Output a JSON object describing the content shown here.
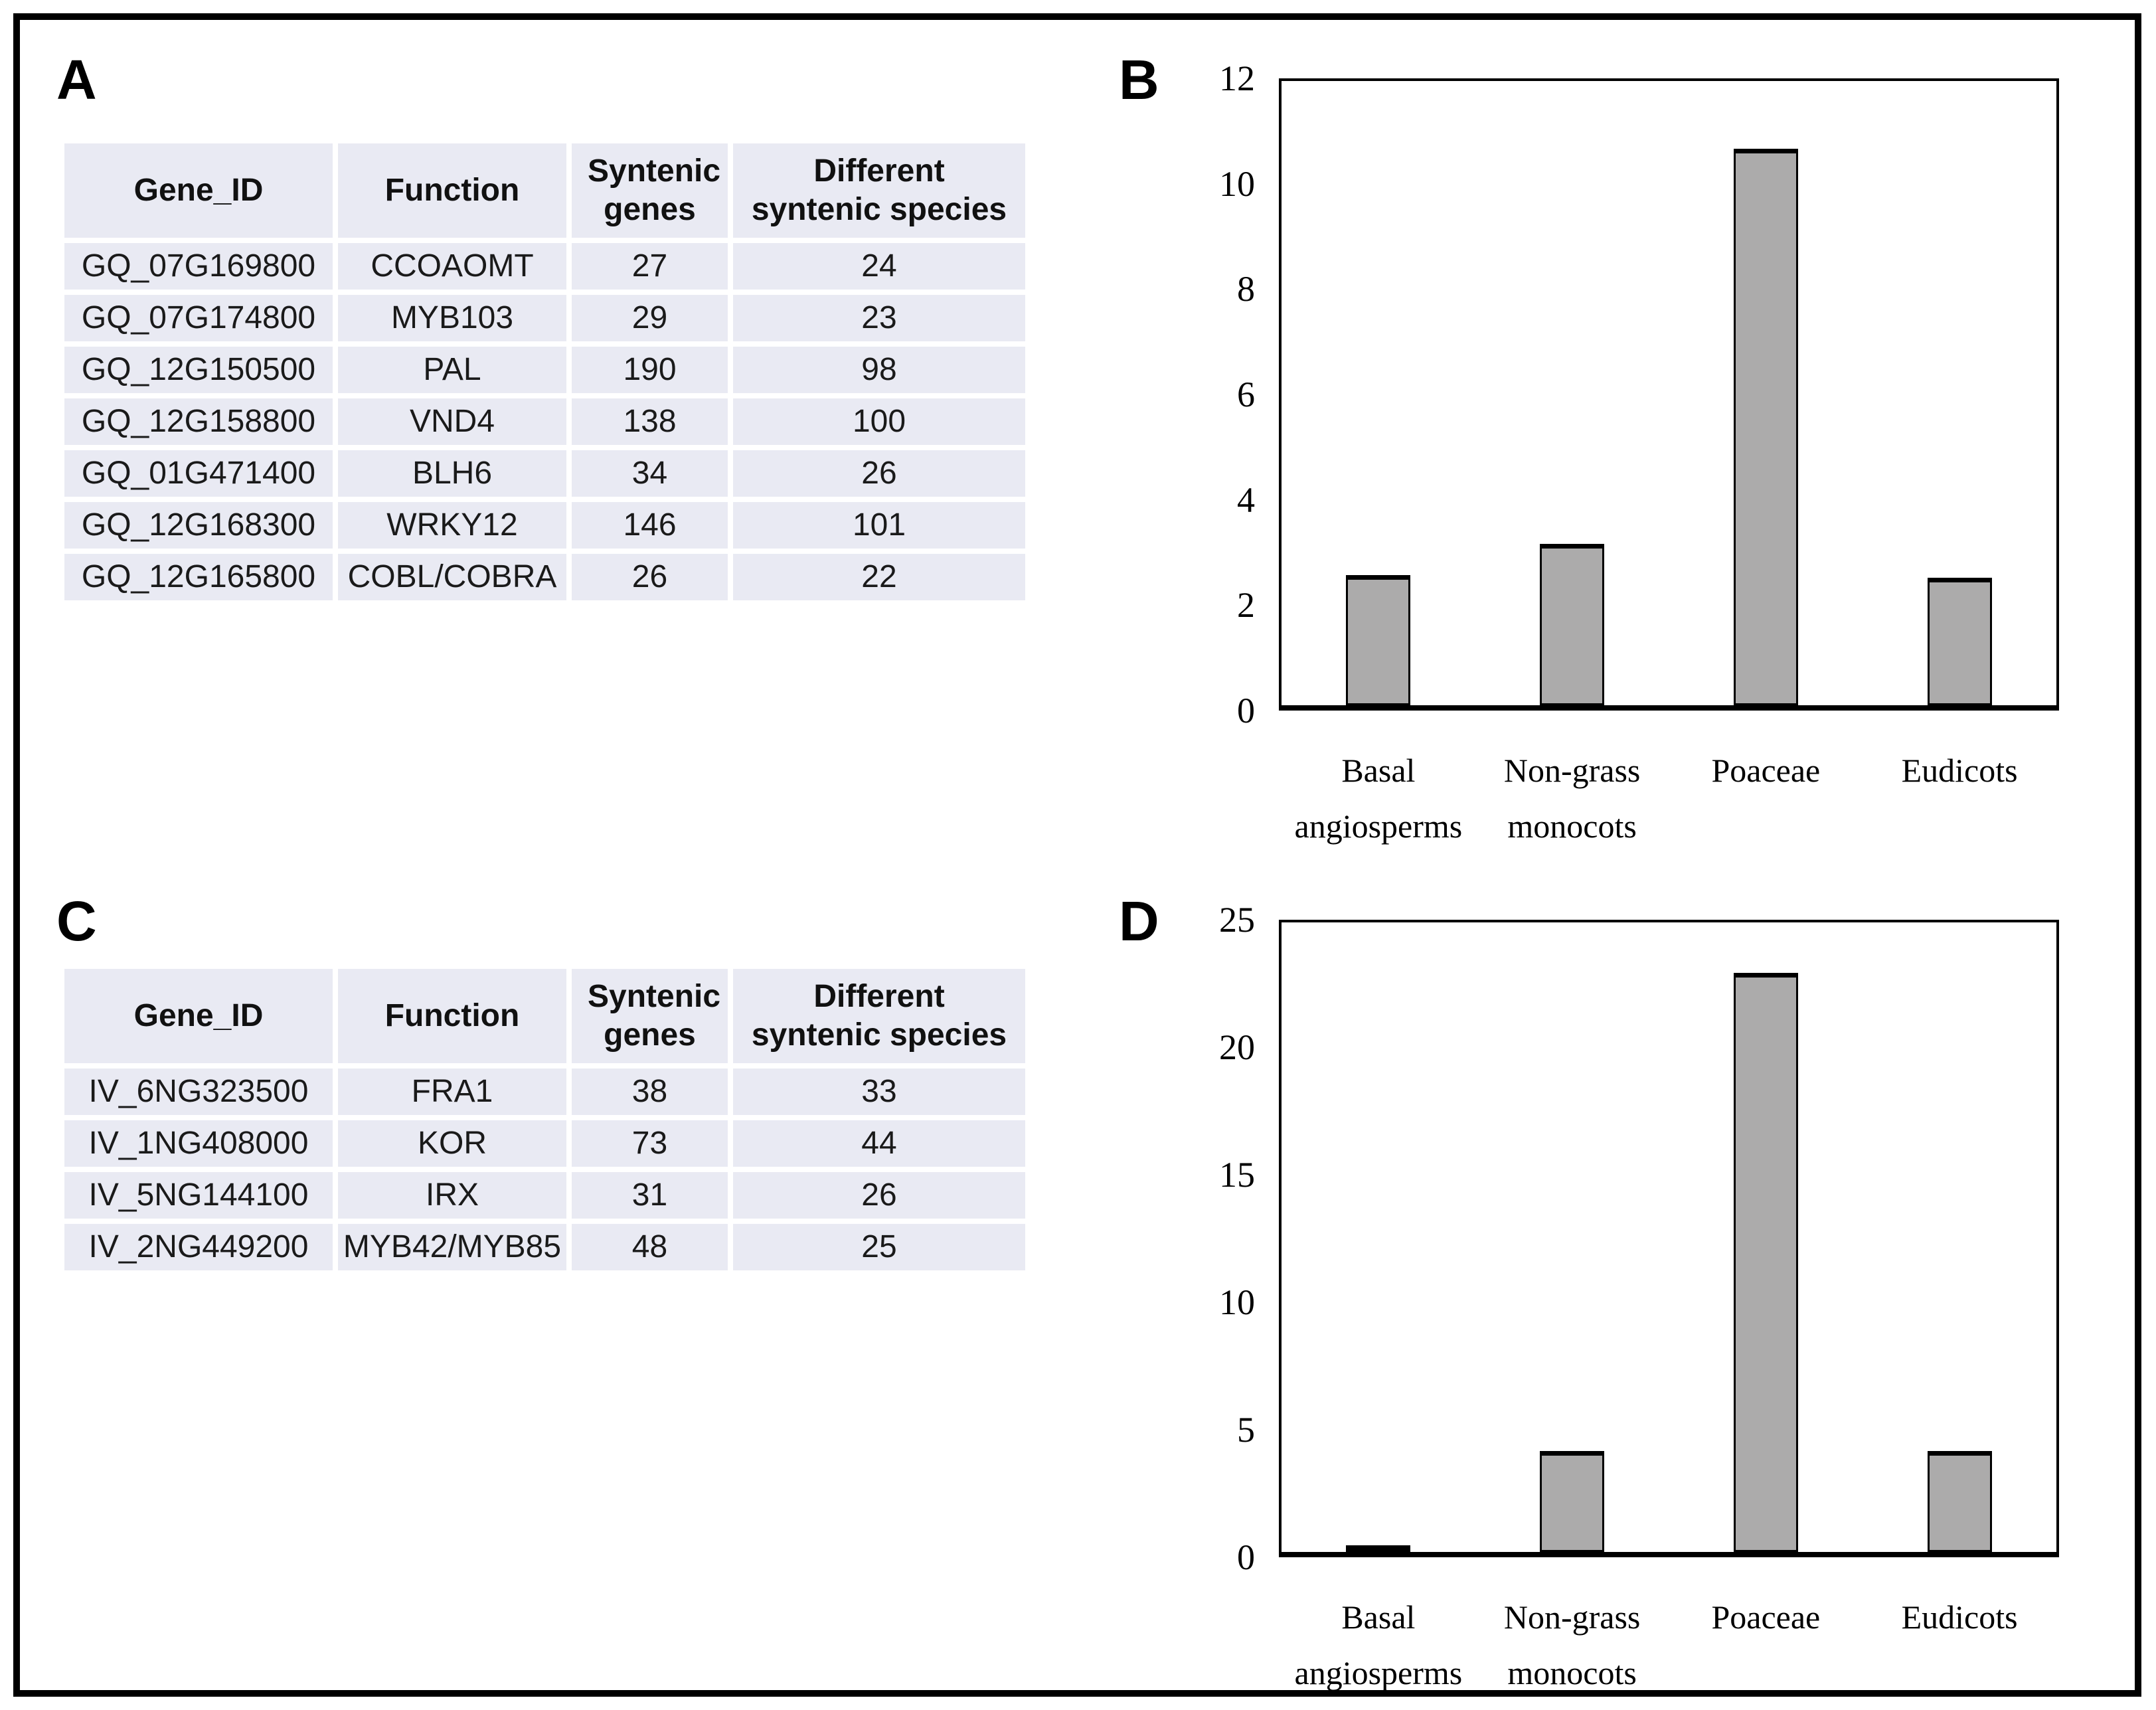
{
  "figure": {
    "background_color": "#ffffff",
    "border_color": "#000000",
    "table_fill_color": "#e9eaf3",
    "bar_fill_color": "#acabab"
  },
  "panelA": {
    "label": "A",
    "table": {
      "headers": [
        "Gene_ID",
        "Function",
        "Syntenic genes",
        "Different syntenic species"
      ],
      "rows": [
        [
          "GQ_07G169800",
          "CCOAOMT",
          "27",
          "24"
        ],
        [
          "GQ_07G174800",
          "MYB103",
          "29",
          "23"
        ],
        [
          "GQ_12G150500",
          "PAL",
          "190",
          "98"
        ],
        [
          "GQ_12G158800",
          "VND4",
          "138",
          "100"
        ],
        [
          "GQ_01G471400",
          "BLH6",
          "34",
          "26"
        ],
        [
          "GQ_12G168300",
          "WRKY12",
          "146",
          "101"
        ],
        [
          "GQ_12G165800",
          "COBL/COBRA",
          "26",
          "22"
        ]
      ]
    }
  },
  "panelB": {
    "label": "B"
  },
  "panelC": {
    "label": "C",
    "table": {
      "headers": [
        "Gene_ID",
        "Function",
        "Syntenic genes",
        "Different syntenic species"
      ],
      "rows": [
        [
          "IV_6NG323500",
          "FRA1",
          "38",
          "33"
        ],
        [
          "IV_1NG408000",
          "KOR",
          "73",
          "44"
        ],
        [
          "IV_5NG144100",
          "IRX",
          "31",
          "26"
        ],
        [
          "IV_2NG449200",
          "MYB42/MYB85",
          "48",
          "25"
        ]
      ]
    }
  },
  "panelD": {
    "label": "D"
  },
  "chart_data": [
    {
      "id": "B",
      "type": "bar",
      "title": "",
      "xlabel": "",
      "ylabel": "",
      "categories": [
        "Basal angiosperms",
        "Non-grass monocots",
        "Poaceae",
        "Eudicots"
      ],
      "values": [
        2.5,
        3.1,
        10.7,
        2.45
      ],
      "ylim": [
        0,
        12
      ],
      "yticks": [
        0,
        2,
        4,
        6,
        8,
        10,
        12
      ],
      "grid": false,
      "legend": null,
      "bar_color": "#acabab",
      "bar_border_color": "#000000"
    },
    {
      "id": "D",
      "type": "bar",
      "title": "",
      "xlabel": "",
      "ylabel": "",
      "categories": [
        "Basal angiosperms",
        "Non-grass monocots",
        "Poaceae",
        "Eudicots"
      ],
      "values": [
        0.2,
        4,
        23,
        4
      ],
      "ylim": [
        0,
        25
      ],
      "yticks": [
        0,
        5,
        10,
        15,
        20,
        25
      ],
      "grid": false,
      "legend": null,
      "bar_color": "#acabab",
      "bar_border_color": "#000000"
    }
  ]
}
